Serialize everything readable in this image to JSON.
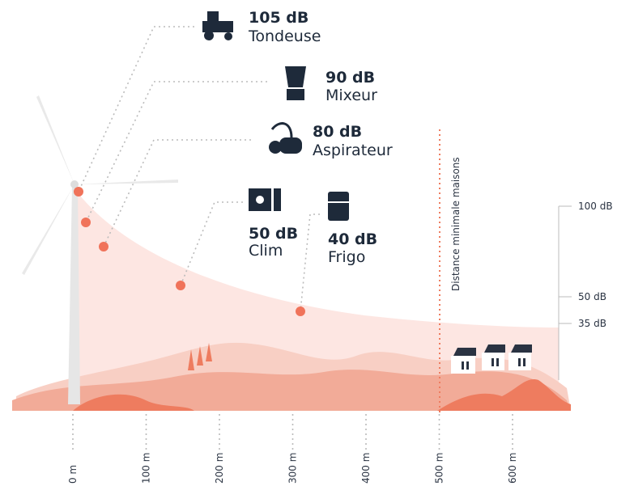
{
  "sources": [
    {
      "level": "105 dB",
      "name": "Tondeuse"
    },
    {
      "level": "90 dB",
      "name": "Mixeur"
    },
    {
      "level": "80 dB",
      "name": "Aspirateur"
    },
    {
      "level": "50 dB",
      "name": "Clim"
    },
    {
      "level": "40 dB",
      "name": "Frigo"
    }
  ],
  "distance_labels": [
    "0 m",
    "100 m",
    "200 m",
    "300 m",
    "400 m",
    "500 m",
    "600 m"
  ],
  "db_labels": [
    "100 dB",
    "50 dB",
    "35 dB"
  ],
  "threshold_label": "Distance minimale maisons"
}
